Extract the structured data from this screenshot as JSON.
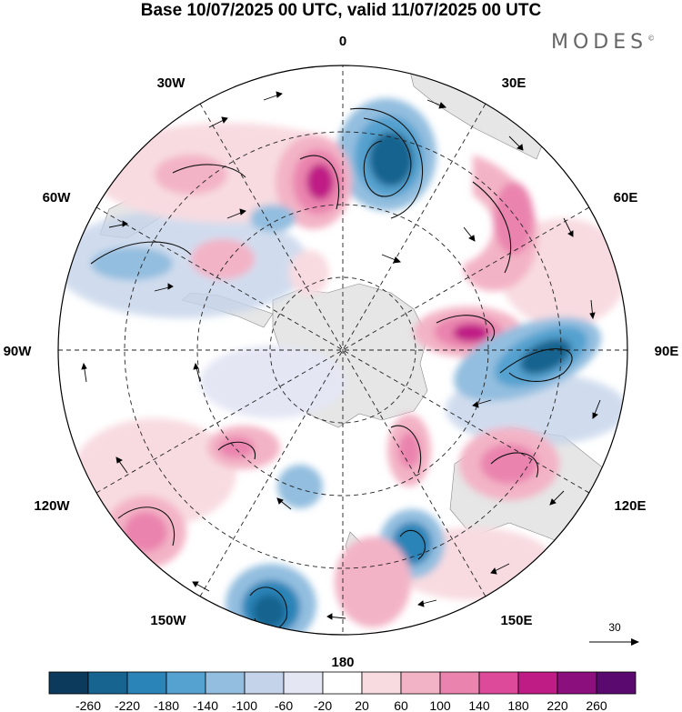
{
  "title": "Base 10/07/2025 00 UTC, valid 11/07/2025 00 UTC",
  "brand": {
    "name": "MODES",
    "mark": "©"
  },
  "map": {
    "projection": "south-polar-stereographic",
    "longitude_labels": [
      "0",
      "30E",
      "60E",
      "90E",
      "120E",
      "150E",
      "180",
      "150W",
      "120W",
      "90W",
      "60W",
      "30W"
    ],
    "anomaly_centers": [
      {
        "lon": "0",
        "sign": "negative",
        "value": -220
      },
      {
        "lon": "30W",
        "sign": "positive",
        "value": 180
      },
      {
        "lon": "45E",
        "sign": "positive",
        "value": 140
      },
      {
        "lon": "90E",
        "sign": "negative",
        "value": -200
      },
      {
        "lon": "80E",
        "sign": "positive",
        "value": 200
      },
      {
        "lon": "125E",
        "sign": "positive",
        "value": 140
      },
      {
        "lon": "150E",
        "sign": "negative",
        "value": -180
      },
      {
        "lon": "165W",
        "sign": "negative",
        "value": -240
      },
      {
        "lon": "125W",
        "sign": "positive",
        "value": 140
      },
      {
        "lon": "140W",
        "sign": "positive",
        "value": 140
      }
    ],
    "reference_vector": {
      "label": "30"
    }
  },
  "colorbar": {
    "labels": [
      "-260",
      "-220",
      "-180",
      "-140",
      "-100",
      "-60",
      "-20",
      "20",
      "60",
      "100",
      "140",
      "180",
      "220",
      "260"
    ],
    "colors": [
      "#0b3a5c",
      "#16648f",
      "#2a84b8",
      "#55a1cf",
      "#93bedf",
      "#c4d3ea",
      "#e4e6f4",
      "#ffffff",
      "#f8dbe1",
      "#f3b3c6",
      "#ea84ae",
      "#dd4a99",
      "#bf1c86",
      "#8b0f7c",
      "#5a0a6e"
    ]
  }
}
